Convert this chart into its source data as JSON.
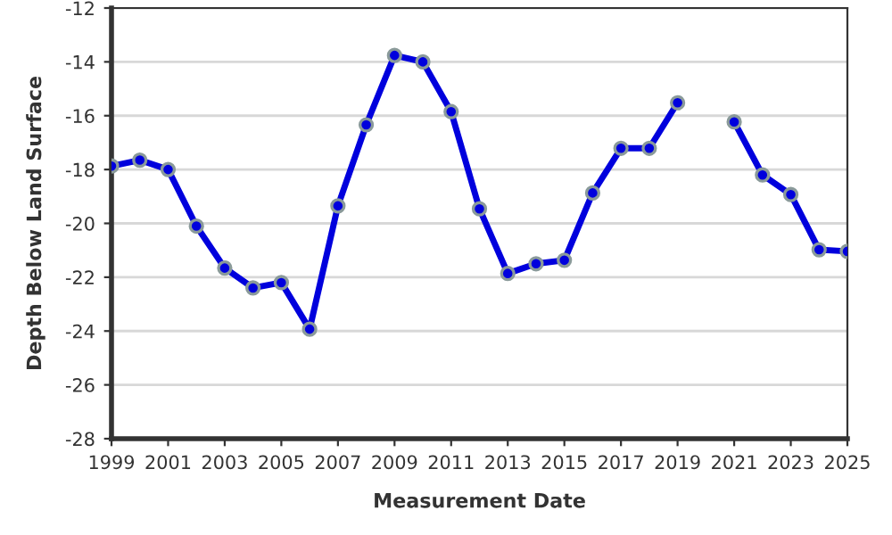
{
  "chart_data": {
    "type": "line",
    "xlabel": "Measurement Date",
    "ylabel": "Depth Below Land Surface",
    "x": [
      1999,
      2000,
      2001,
      2002,
      2003,
      2004,
      2005,
      2006,
      2007,
      2008,
      2009,
      2010,
      2011,
      2012,
      2013,
      2014,
      2015,
      2016,
      2017,
      2018,
      2019,
      2020,
      2021,
      2022,
      2023,
      2024,
      2025
    ],
    "series": [
      {
        "color": "#0000dd",
        "values": [
          -17.87,
          -17.65,
          -18.0,
          -20.1,
          -21.66,
          -22.4,
          -22.2,
          -23.93,
          -19.35,
          -16.34,
          -13.76,
          -14.0,
          -15.85,
          -19.46,
          -21.86,
          -21.5,
          -21.37,
          -18.87,
          -17.21,
          -17.21,
          -15.52,
          null,
          -16.23,
          -18.2,
          -18.93,
          -20.98,
          -21.04
        ]
      }
    ],
    "xlim": [
      1999,
      2025
    ],
    "xticks": [
      1999,
      2001,
      2003,
      2005,
      2007,
      2009,
      2011,
      2013,
      2015,
      2017,
      2019,
      2021,
      2023,
      2025
    ],
    "ylim": [
      -28,
      -12
    ],
    "yticks": [
      -28,
      -26,
      -24,
      -22,
      -20,
      -18,
      -16,
      -14,
      -12
    ],
    "grid": "y",
    "marker": "circle",
    "line_style": "solid",
    "legend": false
  }
}
